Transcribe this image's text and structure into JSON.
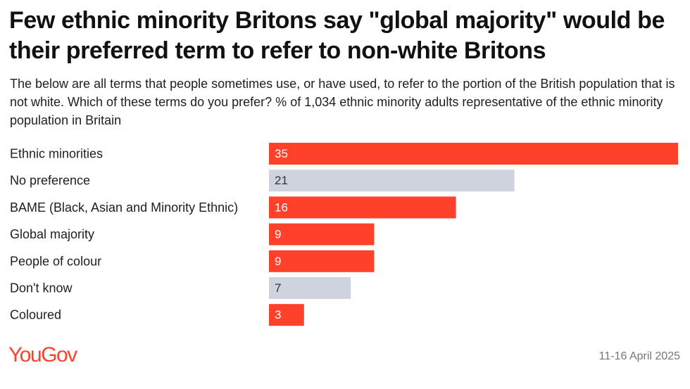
{
  "title": "Few ethnic minority Britons say \"global majority\" would be their preferred term to refer to non-white Britons",
  "subtitle": "The below are all terms that people sometimes use, or have used, to refer to the portion of the British population that is not white. Which of these terms do you prefer? % of 1,034 ethnic minority adults representative of the ethnic minority population in Britain",
  "brand": "YouGov",
  "date": "11-16 April 2025",
  "colors": {
    "highlight": "#ff412c",
    "neutral": "#cfd3de",
    "highlight_text": "#ffffff",
    "neutral_text": "#333333"
  },
  "chart_data": {
    "type": "bar",
    "orientation": "horizontal",
    "xlim": [
      0,
      35
    ],
    "categories": [
      "Ethnic minorities",
      "No preference",
      "BAME (Black, Asian and Minority Ethnic)",
      "Global majority",
      "People of colour",
      "Don't know",
      "Coloured"
    ],
    "values": [
      35,
      21,
      16,
      9,
      9,
      7,
      3
    ],
    "highlight": [
      true,
      false,
      true,
      true,
      true,
      false,
      true
    ],
    "value_labels": [
      "35",
      "21",
      "16",
      "9",
      "9",
      "7",
      "3"
    ],
    "unit": "%"
  }
}
